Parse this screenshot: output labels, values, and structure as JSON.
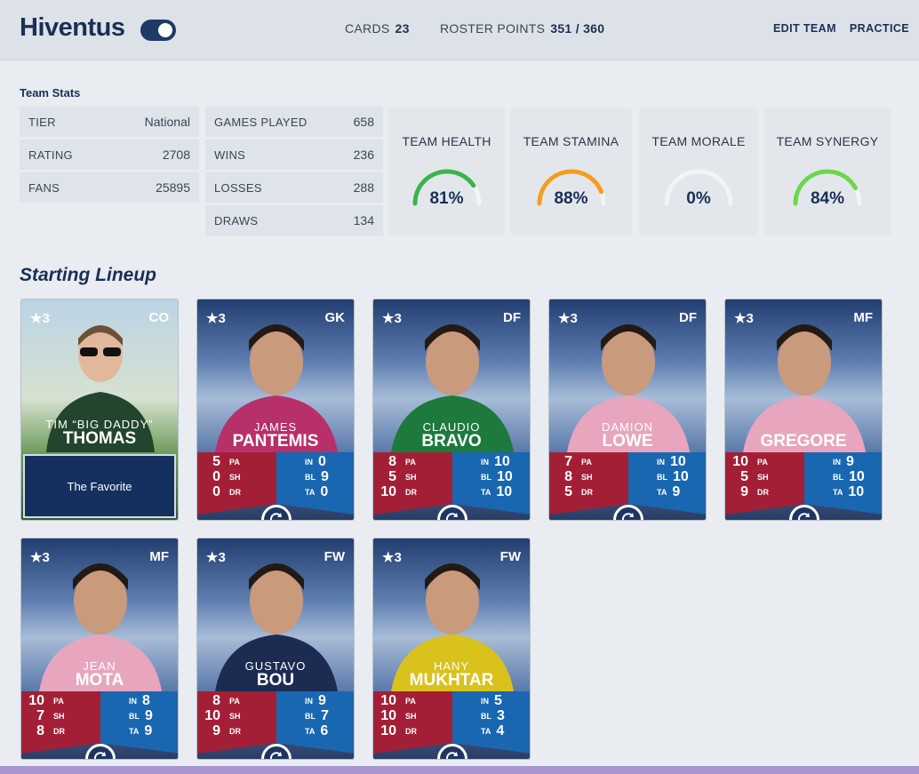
{
  "header": {
    "team_name": "Hiventus",
    "cards_label": "CARDS",
    "cards_value": "23",
    "roster_label": "ROSTER POINTS",
    "roster_value": "351 / 360",
    "edit_team": "EDIT TEAM",
    "practice": "PRACTICE"
  },
  "team_stats": {
    "title": "Team Stats",
    "col1": [
      {
        "label": "TIER",
        "value": "National"
      },
      {
        "label": "RATING",
        "value": "2708"
      },
      {
        "label": "FANS",
        "value": "25895"
      }
    ],
    "col2": [
      {
        "label": "GAMES PLAYED",
        "value": "658"
      },
      {
        "label": "WINS",
        "value": "236"
      },
      {
        "label": "LOSSES",
        "value": "288"
      },
      {
        "label": "DRAWS",
        "value": "134"
      }
    ],
    "gauges": [
      {
        "label": "TEAM HEALTH",
        "value": "81%",
        "pct": 81,
        "color": "#39b54a"
      },
      {
        "label": "TEAM STAMINA",
        "value": "88%",
        "pct": 88,
        "color": "#f59d20"
      },
      {
        "label": "TEAM MORALE",
        "value": "0%",
        "pct": 0,
        "color": "#39b54a"
      },
      {
        "label": "TEAM SYNERGY",
        "value": "84%",
        "pct": 84,
        "color": "#6ad84a"
      }
    ]
  },
  "lineup": {
    "title": "Starting Lineup",
    "coach": {
      "stars": "3",
      "pos": "CO",
      "first": "TIM “BIG DADDY”",
      "last": "THOMAS",
      "trait": "The Favorite"
    },
    "players": [
      {
        "stars": "3",
        "pos": "GK",
        "first": "JAMES",
        "last": "PANTEMIS",
        "pa": "5",
        "sh": "0",
        "dr": "0",
        "in": "0",
        "bl": "9",
        "ta": "0",
        "band": "#b8306a"
      },
      {
        "stars": "3",
        "pos": "DF",
        "first": "CLAUDIO",
        "last": "BRAVO",
        "pa": "8",
        "sh": "5",
        "dr": "10",
        "in": "10",
        "bl": "10",
        "ta": "10",
        "band": "#1e7a3c"
      },
      {
        "stars": "3",
        "pos": "DF",
        "first": "DAMION",
        "last": "LOWE",
        "pa": "7",
        "sh": "8",
        "dr": "5",
        "in": "10",
        "bl": "10",
        "ta": "9",
        "band": "#e7a6bd"
      },
      {
        "stars": "3",
        "pos": "MF",
        "first": "",
        "last": "GREGORE",
        "pa": "10",
        "sh": "5",
        "dr": "9",
        "in": "9",
        "bl": "10",
        "ta": "10",
        "band": "#e7a6bd"
      },
      {
        "stars": "3",
        "pos": "MF",
        "first": "JEAN",
        "last": "MOTA",
        "pa": "10",
        "sh": "7",
        "dr": "8",
        "in": "8",
        "bl": "9",
        "ta": "9",
        "band": "#e7a6bd"
      },
      {
        "stars": "3",
        "pos": "FW",
        "first": "GUSTAVO",
        "last": "BOU",
        "pa": "8",
        "sh": "10",
        "dr": "9",
        "in": "9",
        "bl": "7",
        "ta": "6",
        "band": "#1c2b52"
      },
      {
        "stars": "3",
        "pos": "FW",
        "first": "HANY",
        "last": "MUKHTAR",
        "pa": "10",
        "sh": "10",
        "dr": "10",
        "in": "5",
        "bl": "3",
        "ta": "4",
        "band": "#d9c21c"
      }
    ],
    "stat_labels": {
      "pa": "PA",
      "sh": "SH",
      "dr": "DR",
      "in": "IN",
      "bl": "BL",
      "ta": "TA"
    }
  }
}
